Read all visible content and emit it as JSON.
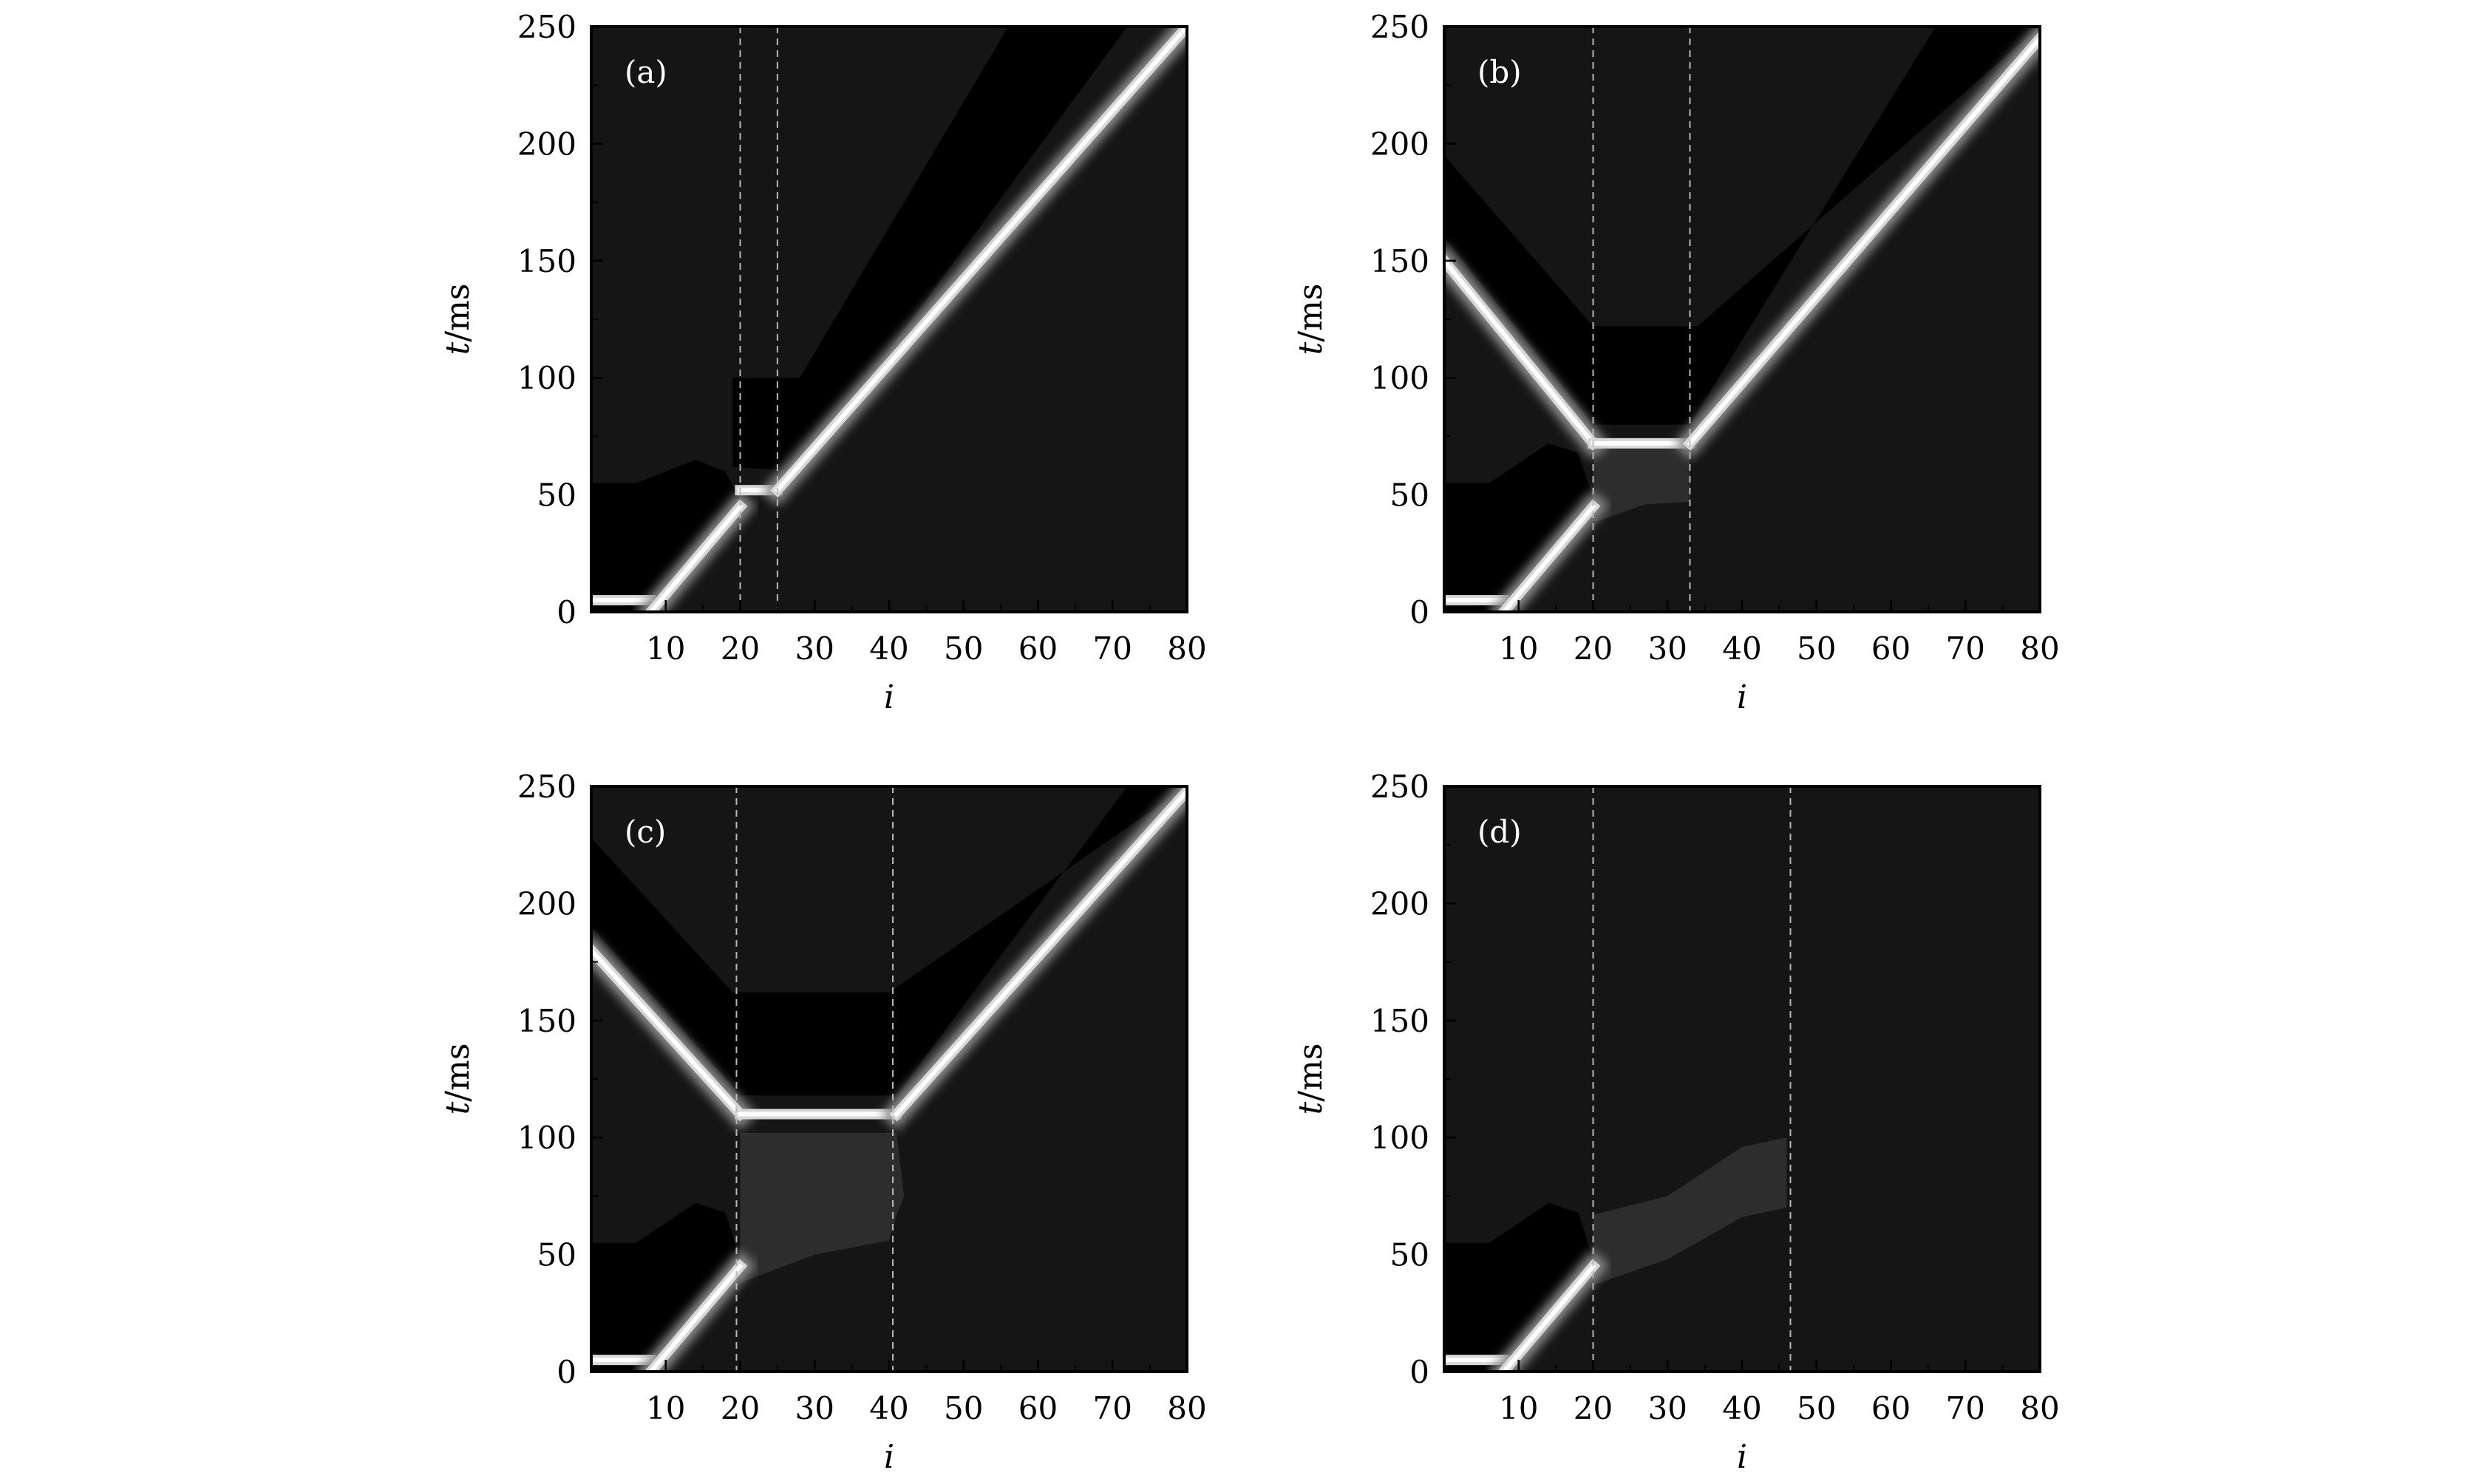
{
  "chart_data": [
    {
      "panel_label": "(a)",
      "type": "heatmap",
      "xlabel": "i",
      "ylabel": "t/ms",
      "xlim": [
        0,
        80
      ],
      "ylim": [
        0,
        250
      ],
      "xticks": [
        "10",
        "20",
        "30",
        "40",
        "50",
        "60",
        "70",
        "80"
      ],
      "yticks": [
        "0",
        "50",
        "100",
        "150",
        "200",
        "250"
      ],
      "dashed_lines_x": [
        20,
        25
      ],
      "background": "#151515",
      "wavefronts": [
        {
          "x": [
            0,
            8
          ],
          "y": [
            5,
            5
          ]
        },
        {
          "x": [
            8,
            20
          ],
          "y": [
            0,
            45
          ]
        },
        {
          "x": [
            20,
            25
          ],
          "y": [
            52,
            52
          ]
        },
        {
          "x": [
            25,
            80
          ],
          "y": [
            52,
            250
          ]
        }
      ],
      "refractory_regions": [
        {
          "points": [
            [
              0,
              13
            ],
            [
              0,
              55
            ],
            [
              6,
              55
            ],
            [
              14,
              65
            ],
            [
              18,
              60
            ],
            [
              20,
              48
            ],
            [
              8,
              0
            ],
            [
              0,
              0
            ]
          ]
        },
        {
          "points": [
            [
              19,
              80
            ],
            [
              19,
              100
            ],
            [
              28,
              100
            ],
            [
              56,
              250
            ],
            [
              72,
              250
            ],
            [
              28,
              60
            ],
            [
              19,
              62
            ]
          ]
        }
      ],
      "faint_regions": []
    },
    {
      "panel_label": "(b)",
      "type": "heatmap",
      "xlabel": "i",
      "ylabel": "t/ms",
      "xlim": [
        0,
        80
      ],
      "ylim": [
        0,
        250
      ],
      "xticks": [
        "10",
        "20",
        "30",
        "40",
        "50",
        "60",
        "70",
        "80"
      ],
      "yticks": [
        "0",
        "50",
        "100",
        "150",
        "200",
        "250"
      ],
      "dashed_lines_x": [
        20,
        33
      ],
      "background": "#151515",
      "wavefronts": [
        {
          "x": [
            0,
            8
          ],
          "y": [
            5,
            5
          ]
        },
        {
          "x": [
            8,
            20
          ],
          "y": [
            0,
            45
          ]
        },
        {
          "x": [
            0,
            20
          ],
          "y": [
            150,
            72
          ]
        },
        {
          "x": [
            20,
            33
          ],
          "y": [
            72,
            72
          ]
        },
        {
          "x": [
            33,
            80
          ],
          "y": [
            72,
            245
          ]
        }
      ],
      "refractory_regions": [
        {
          "points": [
            [
              0,
              13
            ],
            [
              0,
              55
            ],
            [
              6,
              55
            ],
            [
              14,
              72
            ],
            [
              18,
              68
            ],
            [
              20,
              48
            ],
            [
              8,
              0
            ],
            [
              0,
              0
            ]
          ]
        },
        {
          "points": [
            [
              0,
              195
            ],
            [
              0,
              160
            ],
            [
              20,
              80
            ],
            [
              33,
              80
            ],
            [
              66,
              250
            ],
            [
              80,
              250
            ],
            [
              34,
              122
            ],
            [
              20,
              122
            ]
          ]
        }
      ],
      "faint_regions": [
        {
          "points": [
            [
              20,
              70
            ],
            [
              33,
              70
            ],
            [
              33,
              47
            ],
            [
              27,
              46
            ],
            [
              20,
              38
            ]
          ]
        }
      ]
    },
    {
      "panel_label": "(c)",
      "type": "heatmap",
      "xlabel": "i",
      "ylabel": "t/ms",
      "xlim": [
        0,
        80
      ],
      "ylim": [
        0,
        250
      ],
      "xticks": [
        "10",
        "20",
        "30",
        "40",
        "50",
        "60",
        "70",
        "80"
      ],
      "yticks": [
        "0",
        "50",
        "100",
        "150",
        "200",
        "250"
      ],
      "dashed_lines_x": [
        19.5,
        40.5
      ],
      "background": "#151515",
      "wavefronts": [
        {
          "x": [
            0,
            8
          ],
          "y": [
            5,
            5
          ]
        },
        {
          "x": [
            8,
            20
          ],
          "y": [
            0,
            45
          ]
        },
        {
          "x": [
            0,
            20
          ],
          "y": [
            180,
            110
          ]
        },
        {
          "x": [
            20,
            41
          ],
          "y": [
            110,
            110
          ]
        },
        {
          "x": [
            41,
            80
          ],
          "y": [
            110,
            248
          ]
        }
      ],
      "refractory_regions": [
        {
          "points": [
            [
              0,
              13
            ],
            [
              0,
              55
            ],
            [
              6,
              55
            ],
            [
              14,
              72
            ],
            [
              18,
              68
            ],
            [
              20,
              48
            ],
            [
              8,
              0
            ],
            [
              0,
              0
            ]
          ]
        },
        {
          "points": [
            [
              0,
              228
            ],
            [
              0,
              190
            ],
            [
              20,
              118
            ],
            [
              41,
              118
            ],
            [
              72,
              250
            ],
            [
              80,
              250
            ],
            [
              40,
              162
            ],
            [
              19,
              162
            ]
          ]
        }
      ],
      "faint_regions": [
        {
          "points": [
            [
              20,
              102
            ],
            [
              41,
              102
            ],
            [
              42,
              75
            ],
            [
              41,
              67
            ],
            [
              40,
              56
            ],
            [
              30,
              50
            ],
            [
              20,
              38
            ]
          ]
        }
      ]
    },
    {
      "panel_label": "(d)",
      "type": "heatmap",
      "xlabel": "i",
      "ylabel": "t/ms",
      "xlim": [
        0,
        80
      ],
      "ylim": [
        0,
        250
      ],
      "xticks": [
        "10",
        "20",
        "30",
        "40",
        "50",
        "60",
        "70",
        "80"
      ],
      "yticks": [
        "0",
        "50",
        "100",
        "150",
        "200",
        "250"
      ],
      "dashed_lines_x": [
        20,
        46.5
      ],
      "background": "#151515",
      "wavefronts": [
        {
          "x": [
            0,
            8
          ],
          "y": [
            5,
            5
          ]
        },
        {
          "x": [
            8,
            20
          ],
          "y": [
            0,
            45
          ]
        }
      ],
      "refractory_regions": [
        {
          "points": [
            [
              0,
              13
            ],
            [
              0,
              55
            ],
            [
              6,
              55
            ],
            [
              14,
              72
            ],
            [
              18,
              68
            ],
            [
              20,
              48
            ],
            [
              8,
              0
            ],
            [
              0,
              0
            ]
          ]
        }
      ],
      "faint_regions": [
        {
          "points": [
            [
              20,
              67
            ],
            [
              30,
              75
            ],
            [
              40,
              96
            ],
            [
              46,
              100
            ],
            [
              46,
              70
            ],
            [
              40,
              66
            ],
            [
              30,
              48
            ],
            [
              20,
              37
            ]
          ]
        }
      ]
    }
  ]
}
